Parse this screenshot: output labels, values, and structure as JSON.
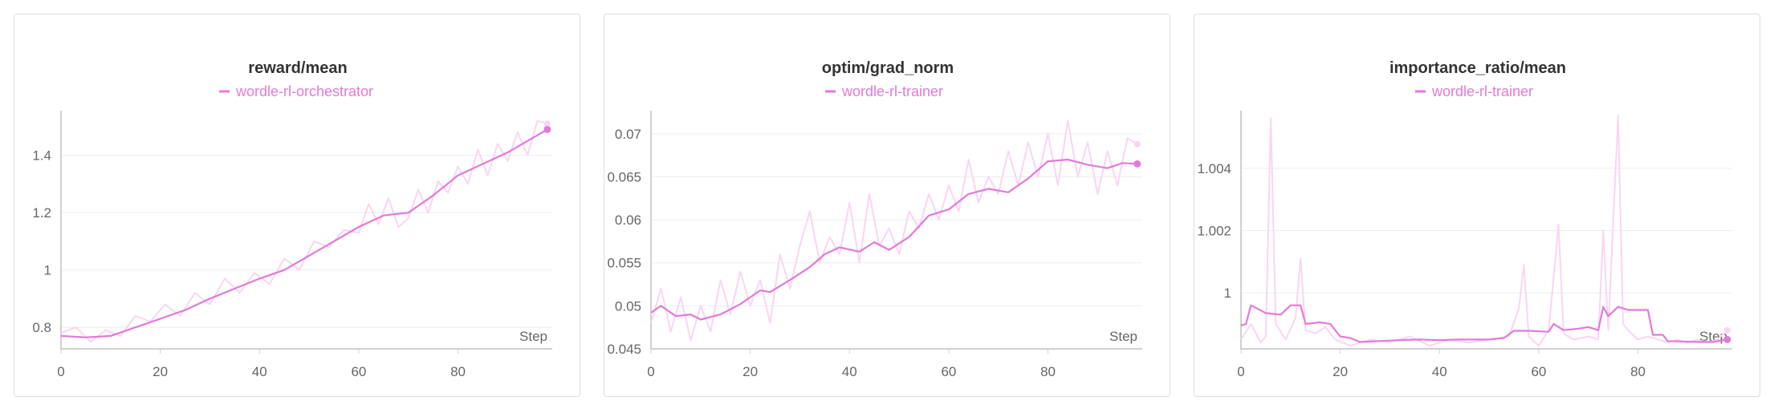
{
  "colors": {
    "series": "#e27ad8",
    "raw": "#f9d5f3",
    "grid": "#ededed",
    "axis": "#d0d0d0",
    "text": "#666666"
  },
  "chart_data": [
    {
      "type": "line",
      "title": "reward/mean",
      "legend": "wordle-rl-orchestrator",
      "xlabel": "Step",
      "x_ticks": [
        "0",
        "20",
        "40",
        "60",
        "80"
      ],
      "y_ticks": [
        "0.8",
        "1",
        "1.2",
        "1.4"
      ],
      "xlim": [
        0,
        99
      ],
      "ylim": [
        0.725,
        1.55
      ],
      "y_tick_values": [
        0.8,
        1.0,
        1.2,
        1.4
      ],
      "x_tick_values": [
        0,
        20,
        40,
        60,
        80
      ],
      "smoothed": [
        [
          0,
          0.77
        ],
        [
          5,
          0.765
        ],
        [
          10,
          0.77
        ],
        [
          15,
          0.8
        ],
        [
          20,
          0.83
        ],
        [
          25,
          0.86
        ],
        [
          30,
          0.9
        ],
        [
          35,
          0.935
        ],
        [
          40,
          0.97
        ],
        [
          45,
          1.0
        ],
        [
          50,
          1.05
        ],
        [
          55,
          1.1
        ],
        [
          60,
          1.15
        ],
        [
          65,
          1.19
        ],
        [
          70,
          1.2
        ],
        [
          75,
          1.26
        ],
        [
          80,
          1.33
        ],
        [
          85,
          1.37
        ],
        [
          90,
          1.41
        ],
        [
          95,
          1.46
        ],
        [
          98,
          1.49
        ]
      ],
      "raw": [
        [
          0,
          0.78
        ],
        [
          3,
          0.8
        ],
        [
          6,
          0.75
        ],
        [
          9,
          0.79
        ],
        [
          12,
          0.77
        ],
        [
          15,
          0.84
        ],
        [
          18,
          0.82
        ],
        [
          21,
          0.88
        ],
        [
          24,
          0.84
        ],
        [
          27,
          0.92
        ],
        [
          30,
          0.88
        ],
        [
          33,
          0.97
        ],
        [
          36,
          0.92
        ],
        [
          39,
          0.99
        ],
        [
          42,
          0.95
        ],
        [
          45,
          1.04
        ],
        [
          48,
          1.0
        ],
        [
          51,
          1.1
        ],
        [
          54,
          1.08
        ],
        [
          57,
          1.14
        ],
        [
          60,
          1.13
        ],
        [
          62,
          1.23
        ],
        [
          64,
          1.16
        ],
        [
          66,
          1.25
        ],
        [
          68,
          1.15
        ],
        [
          70,
          1.18
        ],
        [
          72,
          1.28
        ],
        [
          74,
          1.2
        ],
        [
          76,
          1.31
        ],
        [
          78,
          1.27
        ],
        [
          80,
          1.36
        ],
        [
          82,
          1.3
        ],
        [
          84,
          1.42
        ],
        [
          86,
          1.33
        ],
        [
          88,
          1.44
        ],
        [
          90,
          1.38
        ],
        [
          92,
          1.48
        ],
        [
          94,
          1.4
        ],
        [
          96,
          1.52
        ],
        [
          98,
          1.51
        ]
      ]
    },
    {
      "type": "line",
      "title": "optim/grad_norm",
      "legend": "wordle-rl-trainer",
      "xlabel": "Step",
      "x_ticks": [
        "0",
        "20",
        "40",
        "60",
        "80"
      ],
      "y_ticks": [
        "0.045",
        "0.05",
        "0.055",
        "0.06",
        "0.065",
        "0.07"
      ],
      "xlim": [
        0,
        99
      ],
      "ylim": [
        0.045,
        0.0725
      ],
      "y_tick_values": [
        0.045,
        0.05,
        0.055,
        0.06,
        0.065,
        0.07
      ],
      "x_tick_values": [
        0,
        20,
        40,
        60,
        80
      ],
      "smoothed": [
        [
          0,
          0.0492
        ],
        [
          2,
          0.05
        ],
        [
          5,
          0.0488
        ],
        [
          8,
          0.049
        ],
        [
          10,
          0.0484
        ],
        [
          14,
          0.049
        ],
        [
          18,
          0.0502
        ],
        [
          22,
          0.0518
        ],
        [
          24,
          0.0516
        ],
        [
          28,
          0.053
        ],
        [
          32,
          0.0545
        ],
        [
          35,
          0.056
        ],
        [
          38,
          0.0568
        ],
        [
          42,
          0.0563
        ],
        [
          45,
          0.0574
        ],
        [
          48,
          0.0565
        ],
        [
          52,
          0.058
        ],
        [
          56,
          0.0605
        ],
        [
          60,
          0.0612
        ],
        [
          64,
          0.063
        ],
        [
          68,
          0.0636
        ],
        [
          72,
          0.0632
        ],
        [
          76,
          0.0648
        ],
        [
          80,
          0.0668
        ],
        [
          84,
          0.067
        ],
        [
          88,
          0.0664
        ],
        [
          92,
          0.066
        ],
        [
          95,
          0.0666
        ],
        [
          98,
          0.0665
        ]
      ],
      "raw": [
        [
          0,
          0.048
        ],
        [
          2,
          0.052
        ],
        [
          4,
          0.047
        ],
        [
          6,
          0.051
        ],
        [
          8,
          0.046
        ],
        [
          10,
          0.05
        ],
        [
          12,
          0.047
        ],
        [
          14,
          0.053
        ],
        [
          16,
          0.049
        ],
        [
          18,
          0.054
        ],
        [
          20,
          0.05
        ],
        [
          22,
          0.053
        ],
        [
          24,
          0.048
        ],
        [
          26,
          0.056
        ],
        [
          28,
          0.052
        ],
        [
          30,
          0.057
        ],
        [
          32,
          0.061
        ],
        [
          34,
          0.055
        ],
        [
          36,
          0.058
        ],
        [
          38,
          0.056
        ],
        [
          40,
          0.062
        ],
        [
          42,
          0.055
        ],
        [
          44,
          0.063
        ],
        [
          46,
          0.057
        ],
        [
          48,
          0.059
        ],
        [
          50,
          0.056
        ],
        [
          52,
          0.061
        ],
        [
          54,
          0.059
        ],
        [
          56,
          0.063
        ],
        [
          58,
          0.06
        ],
        [
          60,
          0.064
        ],
        [
          62,
          0.061
        ],
        [
          64,
          0.067
        ],
        [
          66,
          0.062
        ],
        [
          68,
          0.065
        ],
        [
          70,
          0.063
        ],
        [
          72,
          0.068
        ],
        [
          74,
          0.064
        ],
        [
          76,
          0.069
        ],
        [
          78,
          0.065
        ],
        [
          80,
          0.07
        ],
        [
          82,
          0.064
        ],
        [
          84,
          0.0715
        ],
        [
          86,
          0.065
        ],
        [
          88,
          0.069
        ],
        [
          90,
          0.063
        ],
        [
          92,
          0.068
        ],
        [
          94,
          0.064
        ],
        [
          96,
          0.0695
        ],
        [
          98,
          0.0688
        ]
      ]
    },
    {
      "type": "line",
      "title": "importance_ratio/mean",
      "legend": "wordle-rl-trainer",
      "xlabel": "Step",
      "x_ticks": [
        "0",
        "20",
        "40",
        "60",
        "80"
      ],
      "y_ticks": [
        "1",
        "1.002",
        "1.004"
      ],
      "xlim": [
        0,
        99
      ],
      "ylim": [
        0.9982,
        1.0058
      ],
      "y_tick_values": [
        1.0,
        1.002,
        1.004
      ],
      "x_tick_values": [
        0,
        20,
        40,
        60,
        80
      ],
      "smoothed": [
        [
          0,
          0.99895
        ],
        [
          1,
          0.999
        ],
        [
          2,
          0.9996
        ],
        [
          5,
          0.99935
        ],
        [
          8,
          0.9993
        ],
        [
          10,
          0.9996
        ],
        [
          12,
          0.9996
        ],
        [
          13,
          0.999
        ],
        [
          16,
          0.99905
        ],
        [
          18,
          0.999
        ],
        [
          20,
          0.9986
        ],
        [
          22,
          0.99855
        ],
        [
          24,
          0.99842
        ],
        [
          28,
          0.99845
        ],
        [
          32,
          0.99848
        ],
        [
          36,
          0.9985
        ],
        [
          40,
          0.99848
        ],
        [
          44,
          0.9985
        ],
        [
          50,
          0.9985
        ],
        [
          53,
          0.99855
        ],
        [
          55,
          0.99878
        ],
        [
          58,
          0.99878
        ],
        [
          62,
          0.99875
        ],
        [
          63,
          0.999
        ],
        [
          65,
          0.9988
        ],
        [
          68,
          0.99885
        ],
        [
          70,
          0.9989
        ],
        [
          72,
          0.9988
        ],
        [
          73,
          0.99955
        ],
        [
          74,
          0.99925
        ],
        [
          76,
          0.99955
        ],
        [
          78,
          0.99945
        ],
        [
          80,
          0.99945
        ],
        [
          82,
          0.99945
        ],
        [
          83,
          0.99865
        ],
        [
          85,
          0.99865
        ],
        [
          86,
          0.99845
        ],
        [
          90,
          0.99843
        ],
        [
          95,
          0.99842
        ],
        [
          98,
          0.9985
        ]
      ],
      "raw": [
        [
          0,
          0.9985
        ],
        [
          2,
          0.999
        ],
        [
          4,
          0.9984
        ],
        [
          5,
          0.9986
        ],
        [
          6,
          1.0056
        ],
        [
          7,
          0.999
        ],
        [
          9,
          0.9985
        ],
        [
          11,
          0.9992
        ],
        [
          12,
          1.0011
        ],
        [
          13,
          0.9988
        ],
        [
          15,
          0.9987
        ],
        [
          17,
          0.9989
        ],
        [
          19,
          0.9985
        ],
        [
          22,
          0.9983
        ],
        [
          26,
          0.9985
        ],
        [
          30,
          0.9984
        ],
        [
          34,
          0.9986
        ],
        [
          38,
          0.9983
        ],
        [
          42,
          0.9985
        ],
        [
          46,
          0.9984
        ],
        [
          50,
          0.9985
        ],
        [
          54,
          0.9986
        ],
        [
          56,
          0.9995
        ],
        [
          57,
          1.0009
        ],
        [
          58,
          0.9986
        ],
        [
          60,
          0.9983
        ],
        [
          62,
          0.9988
        ],
        [
          64,
          1.0022
        ],
        [
          65,
          0.9987
        ],
        [
          67,
          0.9985
        ],
        [
          70,
          0.9986
        ],
        [
          72,
          0.9985
        ],
        [
          73,
          1.002
        ],
        [
          74,
          0.9988
        ],
        [
          76,
          1.0057
        ],
        [
          77,
          0.999
        ],
        [
          78,
          0.9988
        ],
        [
          80,
          0.9985
        ],
        [
          82,
          0.9986
        ],
        [
          84,
          0.9985
        ],
        [
          86,
          0.9984
        ],
        [
          88,
          0.9985
        ],
        [
          90,
          0.9984
        ],
        [
          92,
          0.9985
        ],
        [
          94,
          0.9984
        ],
        [
          96,
          0.9985
        ],
        [
          98,
          0.9988
        ]
      ]
    }
  ]
}
